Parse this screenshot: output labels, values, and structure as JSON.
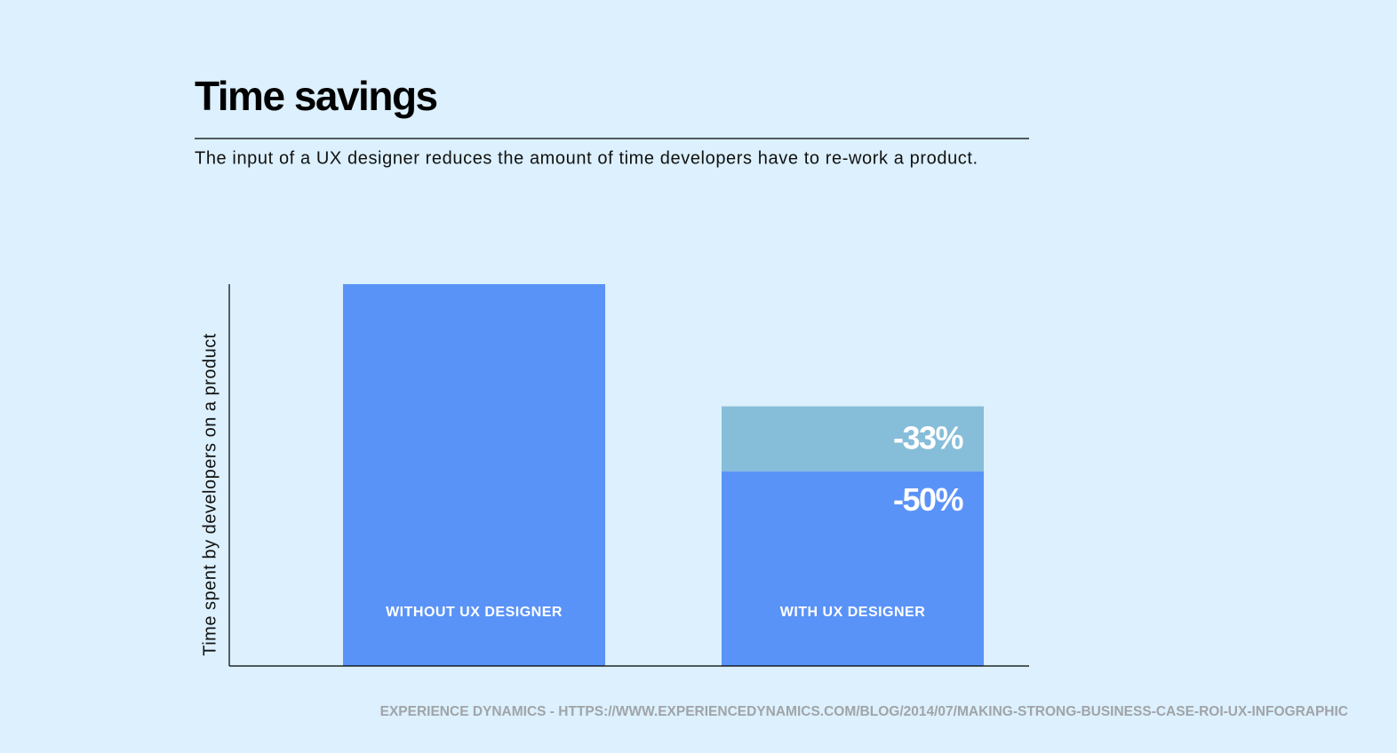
{
  "chart_data": {
    "type": "bar",
    "title": "Time savings",
    "subtitle": "The input of a UX designer reduces the amount of time developers have to re-work a product.",
    "y_label": "Time spent by developers on a product",
    "categories": [
      "WITHOUT UX DESIGNER",
      "WITH UX DESIGNER"
    ],
    "stacked": true,
    "series": [
      {
        "color": "#5a93f7",
        "values": [
          100,
          51
        ]
      },
      {
        "color": "#86bdd9",
        "values": [
          null,
          17
        ]
      }
    ],
    "annotations": [
      "-33%",
      "-50%"
    ],
    "ylim": [
      0,
      100
    ],
    "source": "EXPERIENCE DYNAMICS - HTTPS://WWW.EXPERIENCEDYNAMICS.COM/BLOG/2014/07/MAKING-STRONG-BUSINESS-CASE-ROI-UX-INFOGRAPHIC"
  }
}
